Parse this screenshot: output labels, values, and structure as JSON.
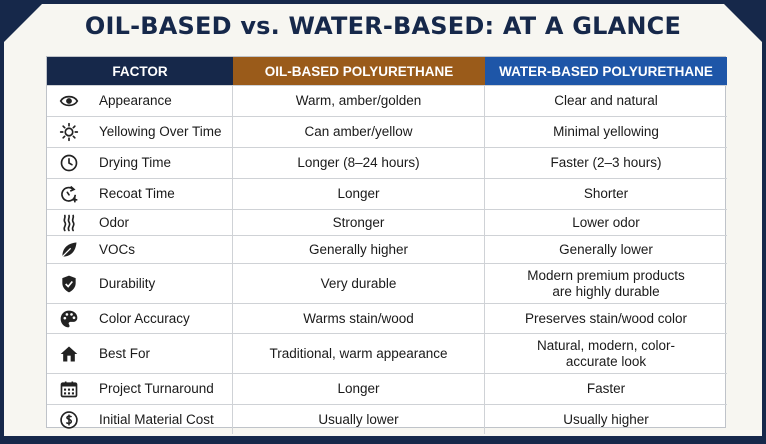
{
  "title": "OIL-BASED vs. WATER-BASED: AT A GLANCE",
  "headers": {
    "factor": "FACTOR",
    "oil": "OIL-BASED POLYURETHANE",
    "water": "WATER-BASED POLYURETHANE"
  },
  "colors": {
    "navy": "#16284a",
    "oil_header": "#9a5b1a",
    "water_header": "#1e56a8"
  },
  "rows": [
    {
      "icon": "eye-icon",
      "factor": "Appearance",
      "oil": "Warm, amber/golden",
      "water": "Clear and natural"
    },
    {
      "icon": "sun-icon",
      "factor": "Yellowing Over Time",
      "oil": "Can amber/yellow",
      "water": "Minimal yellowing"
    },
    {
      "icon": "clock-icon",
      "factor": "Drying Time",
      "oil": "Longer (8–24 hours)",
      "water": "Faster (2–3 hours)"
    },
    {
      "icon": "recoat-timer-icon",
      "factor": "Recoat Time",
      "oil": "Longer",
      "water": "Shorter"
    },
    {
      "icon": "odor-fumes-icon",
      "factor": "Odor",
      "oil": "Stronger",
      "water": "Lower odor"
    },
    {
      "icon": "leaf-icon",
      "factor": "VOCs",
      "oil": "Generally higher",
      "water": "Generally lower"
    },
    {
      "icon": "shield-icon",
      "factor": "Durability",
      "oil": "Very durable",
      "water": "Modern premium products are highly durable"
    },
    {
      "icon": "palette-icon",
      "factor": "Color Accuracy",
      "oil": "Warms stain/wood",
      "water": "Preserves stain/wood color"
    },
    {
      "icon": "house-icon",
      "factor": "Best For",
      "oil": "Traditional, warm appearance",
      "water": "Natural, modern, color-accurate look"
    },
    {
      "icon": "calendar-icon",
      "factor": "Project Turnaround",
      "oil": "Longer",
      "water": "Faster"
    },
    {
      "icon": "dollar-icon",
      "factor": "Initial Material Cost",
      "oil": "Usually lower",
      "water": "Usually higher"
    }
  ]
}
